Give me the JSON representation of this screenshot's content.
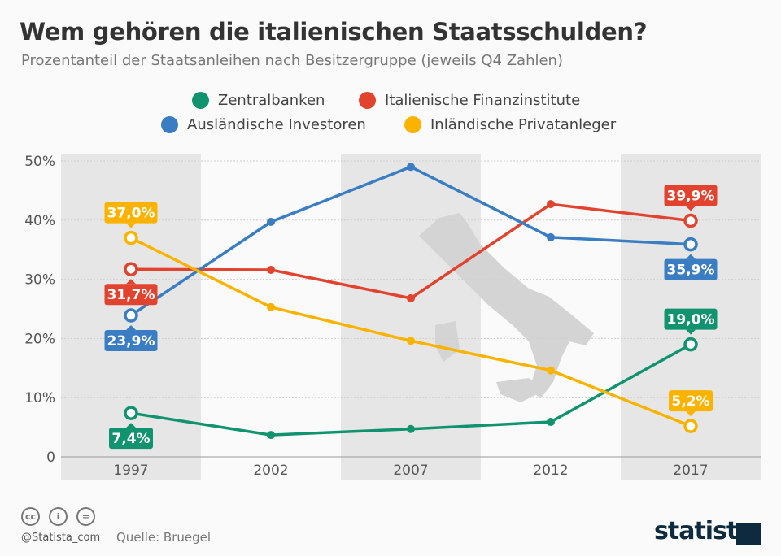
{
  "header": {
    "title": "Wem gehören die italienischen Staatsschulden?",
    "subtitle": "Prozentanteil der Staatsanleihen nach Besitzergruppe (jeweils Q4 Zahlen)"
  },
  "footer": {
    "handle": "@Statista_com",
    "source": "Quelle: Bruegel",
    "logo": "statista",
    "license_icons": [
      "cc-icon",
      "by-icon",
      "nd-icon"
    ]
  },
  "chart_data": {
    "type": "line",
    "title": "Wem gehören die italienischen Staatsschulden?",
    "subtitle": "Prozentanteil der Staatsanleihen nach Besitzergruppe (jeweils Q4 Zahlen)",
    "categories": [
      "1997",
      "2002",
      "2007",
      "2012",
      "2017"
    ],
    "ylim": [
      0,
      50
    ],
    "yticks": [
      "0",
      "10%",
      "20%",
      "30%",
      "40%",
      "50%"
    ],
    "grid": true,
    "legend": "top",
    "series": [
      {
        "name": "Zentralbanken",
        "color": "#12936f",
        "values": [
          7.4,
          3.7,
          4.7,
          5.9,
          19.0
        ],
        "labels": {
          "0": "7,4%",
          "4": "19,0%"
        }
      },
      {
        "name": "Italienische Finanzinstitute",
        "color": "#e2432f",
        "values": [
          31.7,
          31.6,
          26.8,
          42.7,
          39.9
        ],
        "labels": {
          "0": "31,7%",
          "4": "39,9%"
        }
      },
      {
        "name": "Ausländische Investoren",
        "color": "#3a7dc3",
        "values": [
          23.9,
          39.7,
          49.0,
          37.1,
          35.9
        ],
        "labels": {
          "0": "23,9%",
          "4": "35,9%"
        }
      },
      {
        "name": "Inländische Privatanleger",
        "color": "#fbb300",
        "values": [
          37.0,
          25.3,
          19.6,
          14.6,
          5.2
        ],
        "labels": {
          "0": "37,0%",
          "4": "5,2%"
        }
      }
    ]
  }
}
